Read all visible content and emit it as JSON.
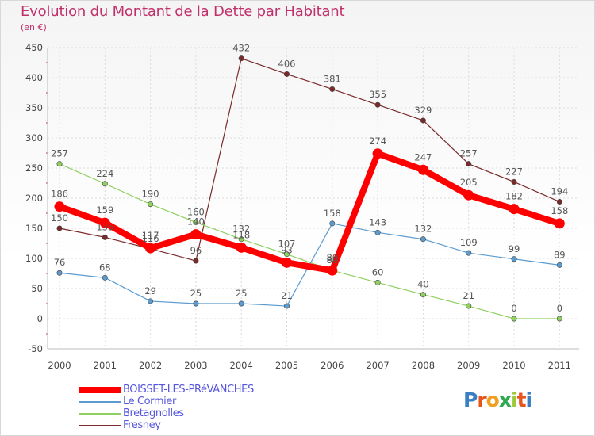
{
  "title": "Evolution du Montant de la Dette par Habitant",
  "unit": "(en €)",
  "logo": {
    "letters": [
      "P",
      "r",
      "o",
      "x",
      "i",
      "t",
      "i"
    ],
    "colors": [
      "#3a7fc1",
      "#e8541e",
      "#f0a020",
      "#2fa84f",
      "#9ec93a",
      "#e8541e",
      "#3a7fc1"
    ]
  },
  "chart_data": {
    "type": "line",
    "categories": [
      "2000",
      "2001",
      "2002",
      "2003",
      "2004",
      "2005",
      "2006",
      "2007",
      "2008",
      "2009",
      "2010",
      "2011"
    ],
    "ylim": [
      -50,
      450
    ],
    "yticks": [
      -50,
      0,
      50,
      100,
      150,
      200,
      250,
      300,
      350,
      400,
      450
    ],
    "grid": true,
    "legend_position": "bottom-left",
    "series": [
      {
        "name": "Fresney",
        "color": "#7a2a2a",
        "width": 1.2,
        "values": [
          150,
          135,
          116,
          96,
          432,
          406,
          381,
          355,
          329,
          257,
          227,
          194
        ],
        "labels": [
          "150",
          "135",
          "116",
          "96",
          "432",
          "406",
          "381",
          "355",
          "329",
          "257",
          "227",
          "194"
        ]
      },
      {
        "name": "Bretagnolles",
        "color": "#8fd060",
        "width": 1.2,
        "values": [
          257,
          224,
          190,
          160,
          132,
          107,
          80,
          60,
          40,
          21,
          0,
          0
        ],
        "labels": [
          "257",
          "224",
          "190",
          "160",
          "132",
          "107",
          "80",
          "60",
          "40",
          "21",
          "0",
          "0"
        ]
      },
      {
        "name": "Le Cormier",
        "color": "#5b9bd0",
        "width": 1.2,
        "values": [
          76,
          68,
          29,
          25,
          25,
          21,
          158,
          143,
          132,
          109,
          99,
          89
        ],
        "labels": [
          "76",
          "68",
          "29",
          "25",
          "25",
          "21",
          "158",
          "143",
          "132",
          "109",
          "99",
          "89"
        ]
      },
      {
        "name": "BOISSET-LES-PRéVANCHES",
        "color": "#ff0000",
        "width": 8,
        "values": [
          186,
          159,
          117,
          140,
          118,
          93,
          80,
          274,
          247,
          205,
          182,
          158
        ],
        "labels": [
          "186",
          "159",
          "117",
          "140",
          "118",
          "93",
          "80",
          "274",
          "247",
          "205",
          "182",
          "158"
        ]
      }
    ],
    "legend": [
      {
        "name": "BOISSET-LES-PRéVANCHES",
        "color": "#ff0000",
        "text_color": "#5555dd",
        "thick": true
      },
      {
        "name": "Le Cormier",
        "color": "#5b9bd0",
        "text_color": "#5555dd",
        "thick": false
      },
      {
        "name": "Bretagnolles",
        "color": "#8fd060",
        "text_color": "#5555dd",
        "thick": false
      },
      {
        "name": "Fresney",
        "color": "#7a2a2a",
        "text_color": "#5555dd",
        "thick": false
      }
    ]
  }
}
